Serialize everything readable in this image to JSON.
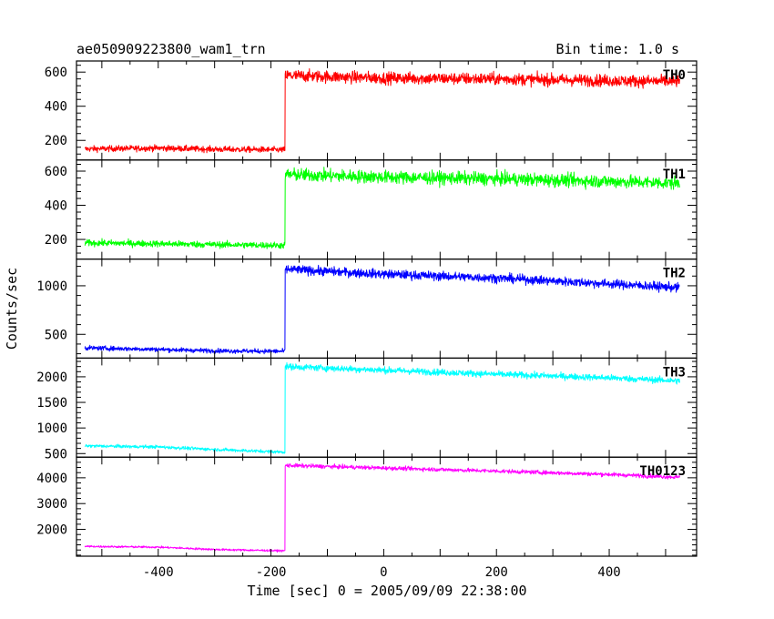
{
  "chart_data": {
    "type": "line",
    "title": "ae050909223800_wam1_trn",
    "subtitle": "Bin time: 1.0 s",
    "xlabel": "Time [sec] 0 = 2005/09/09 22:38:00",
    "ylabel": "Counts/sec",
    "xlim": [
      -545,
      555
    ],
    "x_ticks": [
      -400,
      -200,
      0,
      200,
      400
    ],
    "x_data_range": [
      -530,
      525
    ],
    "step_time": -175,
    "grid": false,
    "legend": "none",
    "panels": [
      {
        "name": "TH0",
        "color": "#ff0000",
        "ylim": [
          85,
          665
        ],
        "yticks": [
          200,
          400,
          600
        ],
        "series": [
          {
            "x": -530,
            "y": 150
          },
          {
            "x": -400,
            "y": 155
          },
          {
            "x": -300,
            "y": 148
          },
          {
            "x": -180,
            "y": 145
          },
          {
            "x": -175,
            "y": 580
          },
          {
            "x": 0,
            "y": 565
          },
          {
            "x": 200,
            "y": 560
          },
          {
            "x": 400,
            "y": 550
          },
          {
            "x": 525,
            "y": 545
          }
        ],
        "noise": 25
      },
      {
        "name": "TH1",
        "color": "#00ff00",
        "ylim": [
          85,
          665
        ],
        "yticks": [
          200,
          400,
          600
        ],
        "series": [
          {
            "x": -530,
            "y": 180
          },
          {
            "x": -400,
            "y": 175
          },
          {
            "x": -300,
            "y": 170
          },
          {
            "x": -180,
            "y": 165
          },
          {
            "x": -175,
            "y": 580
          },
          {
            "x": 0,
            "y": 565
          },
          {
            "x": 200,
            "y": 555
          },
          {
            "x": 400,
            "y": 540
          },
          {
            "x": 525,
            "y": 530
          }
        ],
        "noise": 27
      },
      {
        "name": "TH2",
        "color": "#0000ff",
        "ylim": [
          255,
          1275
        ],
        "yticks": [
          500,
          1000
        ],
        "series": [
          {
            "x": -530,
            "y": 360
          },
          {
            "x": -400,
            "y": 345
          },
          {
            "x": -300,
            "y": 330
          },
          {
            "x": -180,
            "y": 325
          },
          {
            "x": -175,
            "y": 1170
          },
          {
            "x": 0,
            "y": 1120
          },
          {
            "x": 200,
            "y": 1080
          },
          {
            "x": 400,
            "y": 1020
          },
          {
            "x": 525,
            "y": 980
          }
        ],
        "noise": 33
      },
      {
        "name": "TH3",
        "color": "#00ffff",
        "ylim": [
          430,
          2365
        ],
        "yticks": [
          500,
          1000,
          1500,
          2000
        ],
        "series": [
          {
            "x": -530,
            "y": 650
          },
          {
            "x": -400,
            "y": 630
          },
          {
            "x": -300,
            "y": 580
          },
          {
            "x": -180,
            "y": 530
          },
          {
            "x": -175,
            "y": 2200
          },
          {
            "x": 0,
            "y": 2130
          },
          {
            "x": 200,
            "y": 2050
          },
          {
            "x": 400,
            "y": 1980
          },
          {
            "x": 525,
            "y": 1920
          }
        ],
        "noise": 45
      },
      {
        "name": "TH0123",
        "color": "#ff00ff",
        "ylim": [
          960,
          4800
        ],
        "yticks": [
          2000,
          3000,
          4000
        ],
        "series": [
          {
            "x": -530,
            "y": 1340
          },
          {
            "x": -400,
            "y": 1310
          },
          {
            "x": -300,
            "y": 1220
          },
          {
            "x": -180,
            "y": 1170
          },
          {
            "x": -175,
            "y": 4480
          },
          {
            "x": 0,
            "y": 4380
          },
          {
            "x": 200,
            "y": 4260
          },
          {
            "x": 400,
            "y": 4130
          },
          {
            "x": 525,
            "y": 4020
          }
        ],
        "noise": 55
      }
    ]
  }
}
